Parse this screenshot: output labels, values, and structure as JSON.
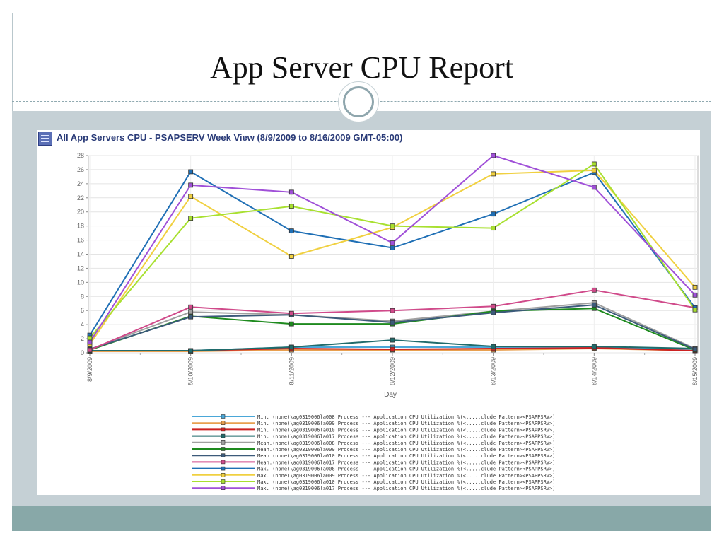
{
  "slide": {
    "title": "App Server CPU Report"
  },
  "chart_panel": {
    "title": "All App Servers CPU - PSAPSERV Week View (8/9/2009 to 8/16/2009 GMT-05:00)"
  },
  "colors": {
    "slide_bg": "#c5d0d5",
    "footer": "#88a8a8",
    "title_blue": "#2a3b78"
  },
  "chart_data": {
    "type": "line",
    "xlabel": "Day",
    "ylabel": "",
    "ylim": [
      0,
      28
    ],
    "yticks": [
      0,
      2,
      4,
      6,
      8,
      10,
      12,
      14,
      16,
      18,
      20,
      22,
      24,
      26,
      28
    ],
    "categories": [
      "8/9/2009",
      "8/10/2009",
      "8/11/2009",
      "8/12/2009",
      "8/13/2009",
      "8/14/2009",
      "8/15/2009"
    ],
    "grid": true,
    "legend_position": "bottom",
    "series": [
      {
        "name": "Min. (none)\\ag0319006la008 Process --- Application CPU Utilization %(<.....clude Pattern><PSAPPSRV>)",
        "color": "#4aa7d8",
        "values": [
          0.3,
          0.3,
          0.8,
          0.8,
          0.8,
          0.8,
          0.5
        ]
      },
      {
        "name": "Min. (none)\\ag0319006la009 Process --- Application CPU Utilization %(<.....clude Pattern><PSAPPSRV>)",
        "color": "#e8a050",
        "values": [
          0.2,
          0.2,
          0.4,
          0.4,
          0.4,
          0.6,
          0.3
        ]
      },
      {
        "name": "Min. (none)\\ag0319006la010 Process --- Application CPU Utilization %(<.....clude Pattern><PSAPPSRV>)",
        "color": "#cc2222",
        "values": [
          0.3,
          0.3,
          0.6,
          0.5,
          0.6,
          0.7,
          0.3
        ]
      },
      {
        "name": "Min. (none)\\ag0319006la017 Process --- Application CPU Utilization %(<.....clude Pattern><PSAPPSRV>)",
        "color": "#1f6b6b",
        "values": [
          0.3,
          0.3,
          0.8,
          1.8,
          0.9,
          0.9,
          0.6
        ]
      },
      {
        "name": "Mean.(none)\\ag0319006la008 Process --- Application CPU Utilization %(<.....clude Pattern><PSAPPSRV>)",
        "color": "#a0a0a0",
        "values": [
          0.5,
          5.8,
          5.4,
          4.5,
          5.9,
          7.1,
          0.6
        ]
      },
      {
        "name": "Mean.(none)\\ag0319006la009 Process --- Application CPU Utilization %(<.....clude Pattern><PSAPPSRV>)",
        "color": "#1e8a1e",
        "values": [
          0.4,
          5.2,
          4.1,
          4.1,
          5.9,
          6.3,
          0.4
        ]
      },
      {
        "name": "Mean.(none)\\ag0319006la010 Process --- Application CPU Utilization %(<.....clude Pattern><PSAPPSRV>)",
        "color": "#3c5a7a",
        "values": [
          0.5,
          5.1,
          5.4,
          4.3,
          5.7,
          6.8,
          0.5
        ]
      },
      {
        "name": "Mean.(none)\\ag0319006la017 Process --- Application CPU Utilization %(<.....clude Pattern><PSAPPSRV>)",
        "color": "#d04a8a",
        "values": [
          0.4,
          6.5,
          5.6,
          6.0,
          6.6,
          8.9,
          6.4
        ]
      },
      {
        "name": "Max. (none)\\ag0319006la008 Process --- Application CPU Utilization %(<.....clude Pattern><PSAPPSRV>)",
        "color": "#1f6fb5",
        "values": [
          2.5,
          25.7,
          17.3,
          14.9,
          19.7,
          25.6,
          6.4
        ]
      },
      {
        "name": "Max. (none)\\ag0319006la009 Process --- Application CPU Utilization %(<.....clude Pattern><PSAPPSRV>)",
        "color": "#f0d040",
        "values": [
          1.2,
          22.2,
          13.7,
          17.8,
          25.4,
          25.9,
          9.3
        ]
      },
      {
        "name": "Max. (none)\\ag0319006la010 Process --- Application CPU Utilization %(<.....clude Pattern><PSAPPSRV>)",
        "color": "#a8e030",
        "values": [
          2.1,
          19.1,
          20.8,
          18.0,
          17.7,
          26.8,
          6.1
        ]
      },
      {
        "name": "Max. (none)\\ag0319006la017 Process --- Application CPU Utilization %(<.....clude Pattern><PSAPPSRV>)",
        "color": "#a050d8",
        "values": [
          1.5,
          23.8,
          22.8,
          15.6,
          28.0,
          23.5,
          8.2
        ]
      }
    ]
  }
}
